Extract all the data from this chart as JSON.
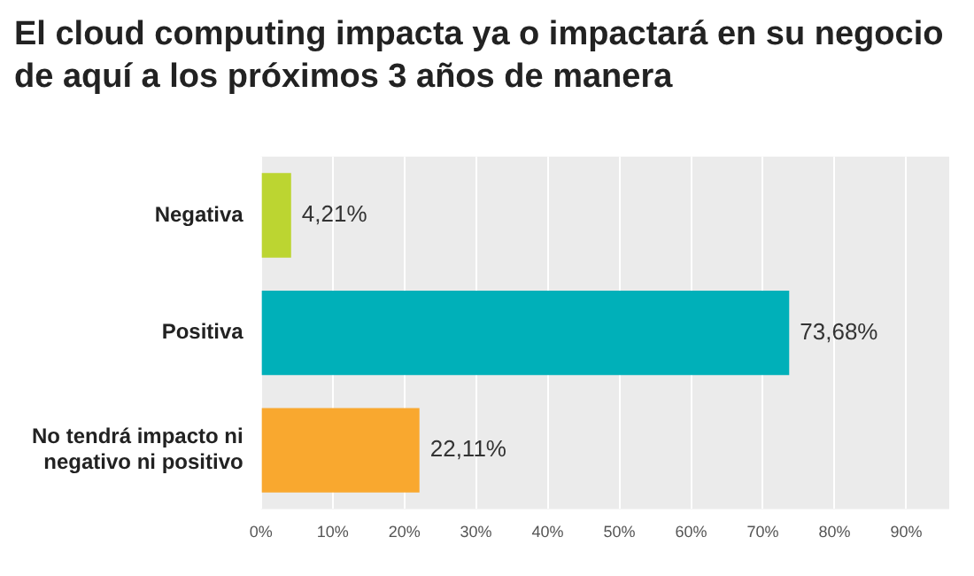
{
  "chart_data": {
    "type": "bar",
    "orientation": "horizontal",
    "title": "El cloud computing impacta ya o impactará en su negocio de aquí a los próximos 3 años de manera",
    "categories": [
      "Negativa",
      "Positiva",
      "No tendrá impacto ni negativo ni positivo"
    ],
    "values": [
      4.21,
      73.68,
      22.11
    ],
    "colors": [
      "#bcd531",
      "#00b0b9",
      "#f9a82f"
    ],
    "value_labels": [
      "4,21%",
      "73,68%",
      "22,11%"
    ],
    "xlim": [
      0,
      96
    ],
    "xticks": [
      {
        "value": 0,
        "label": "0%"
      },
      {
        "value": 10,
        "label": "10%"
      },
      {
        "value": 20,
        "label": "20%"
      },
      {
        "value": 30,
        "label": "30%"
      },
      {
        "value": 40,
        "label": "40%"
      },
      {
        "value": 50,
        "label": "50%"
      },
      {
        "value": 60,
        "label": "60%"
      },
      {
        "value": 70,
        "label": "70%"
      },
      {
        "value": 80,
        "label": "80%"
      },
      {
        "value": 90,
        "label": "90%"
      }
    ],
    "grid": "x",
    "legend": false
  }
}
